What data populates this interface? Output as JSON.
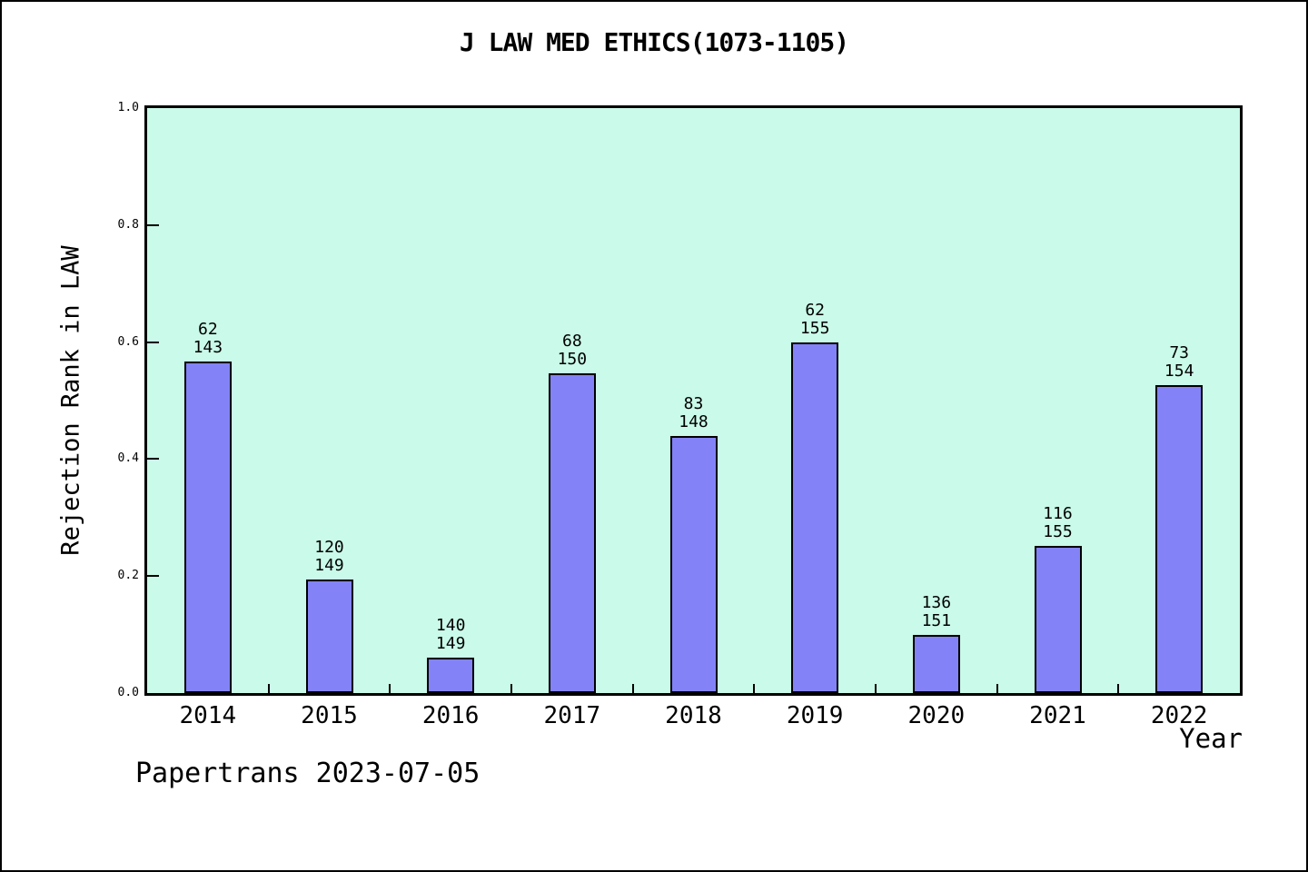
{
  "footer": {
    "text": "Papertrans 2023-07-05"
  },
  "chart_data": {
    "type": "bar",
    "title": "J LAW MED ETHICS(1073-1105)",
    "xlabel": "Year",
    "ylabel": "Rejection Rank in LAW",
    "ylim": [
      0.0,
      1.0
    ],
    "grid": "off",
    "legend": "none",
    "ytick_labels": [
      "0.0",
      "0.2",
      "0.4",
      "0.6",
      "0.8",
      "1.0"
    ],
    "categories": [
      "2014",
      "2015",
      "2016",
      "2017",
      "2018",
      "2019",
      "2020",
      "2021",
      "2022"
    ],
    "bars": [
      {
        "year": "2014",
        "rank": "62",
        "total": "143",
        "value": 0.5664
      },
      {
        "year": "2015",
        "rank": "120",
        "total": "149",
        "value": 0.1946
      },
      {
        "year": "2016",
        "rank": "140",
        "total": "149",
        "value": 0.0604
      },
      {
        "year": "2017",
        "rank": "68",
        "total": "150",
        "value": 0.5467
      },
      {
        "year": "2018",
        "rank": "83",
        "total": "148",
        "value": 0.4392
      },
      {
        "year": "2019",
        "rank": "62",
        "total": "155",
        "value": 0.6
      },
      {
        "year": "2020",
        "rank": "136",
        "total": "151",
        "value": 0.0993
      },
      {
        "year": "2021",
        "rank": "116",
        "total": "155",
        "value": 0.2516
      },
      {
        "year": "2022",
        "rank": "73",
        "total": "154",
        "value": 0.526
      }
    ],
    "colors": {
      "bar_fill": "#8383f7",
      "bar_border": "#000000",
      "plot_bg": "#cafae9",
      "figure_bg": "#ffffff",
      "text": "#000000"
    }
  }
}
